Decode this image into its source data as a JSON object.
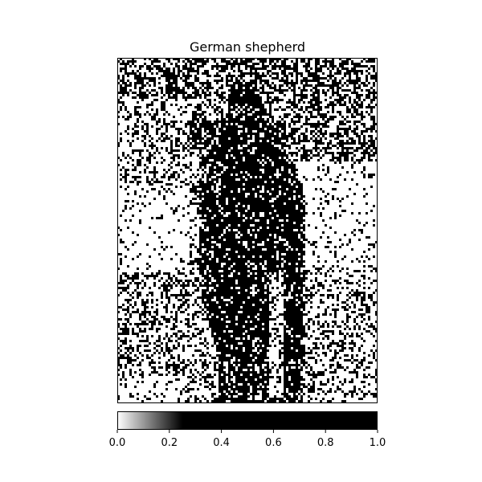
{
  "chart_data": {
    "type": "heatmap",
    "title": "German shepherd",
    "colormap": "gray_r",
    "colorbar": {
      "orientation": "horizontal",
      "range": [
        0.0,
        1.0
      ],
      "ticks": [
        0.0,
        0.2,
        0.4,
        0.6,
        0.8,
        1.0
      ],
      "tick_labels": [
        "0.0",
        "0.2",
        "0.4",
        "0.6",
        "0.8",
        "1.0"
      ],
      "saturation_point": 0.25
    },
    "xticks": [],
    "yticks": [],
    "colors": {
      "low": "#ffffff",
      "high": "#000000",
      "axes": "#000000"
    }
  }
}
